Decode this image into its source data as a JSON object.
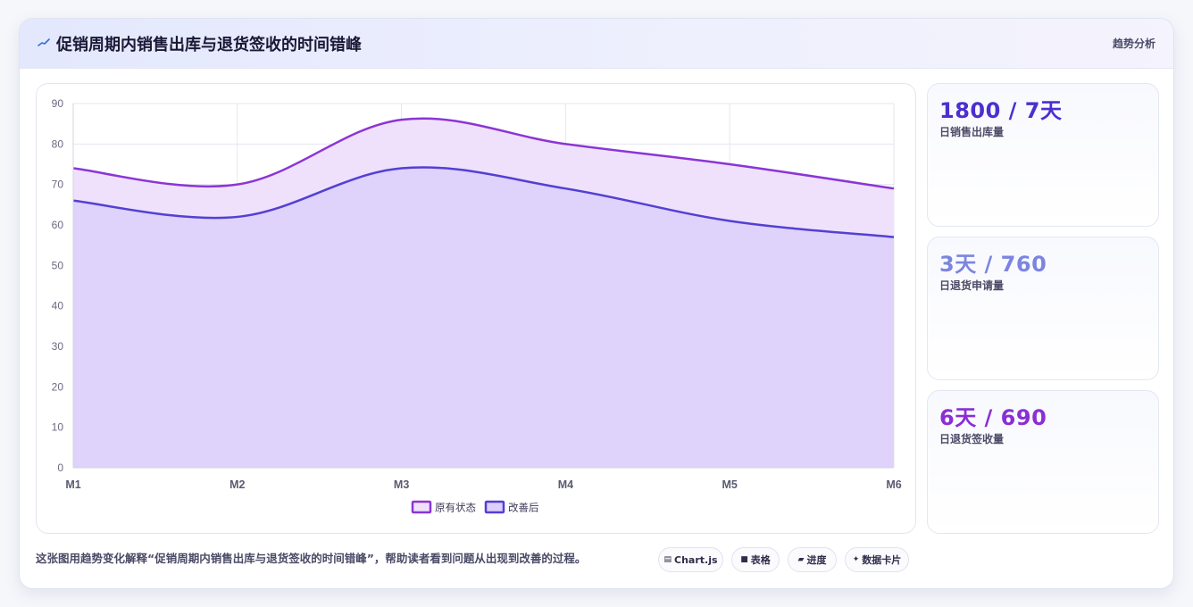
{
  "header": {
    "title": "促销周期内销售出库与退货签收的时间错峰",
    "tag": "趋势分析"
  },
  "chart_data": {
    "type": "area",
    "categories": [
      "M1",
      "M2",
      "M3",
      "M4",
      "M5",
      "M6"
    ],
    "ylim": [
      0,
      90
    ],
    "yticks": [
      0,
      10,
      20,
      30,
      40,
      50,
      60,
      70,
      80,
      90
    ],
    "grid": true,
    "legend_position": "bottom",
    "series": [
      {
        "name": "原有状态",
        "values": [
          74,
          70,
          86,
          80,
          75,
          69
        ],
        "color": "#8b35d6",
        "fill": "#efe1fb"
      },
      {
        "name": "改善后",
        "values": [
          66,
          62,
          74,
          69,
          61,
          57
        ],
        "color": "#5340d3",
        "fill": "#dccffa"
      }
    ]
  },
  "stats": [
    {
      "value": "1800 / 7天",
      "label": "日销售出库量",
      "color": "#4b2fd0"
    },
    {
      "value": "3天 / 760",
      "label": "日退货申请量",
      "color": "#7b85e0"
    },
    {
      "value": "6天 / 690",
      "label": "日退货签收量",
      "color": "#8a2fd4"
    }
  ],
  "footnote": "这张图用趋势变化解释“促销周期内销售出库与退货签收的时间错峰”，帮助读者看到问题从出现到改善的过程。",
  "chips": [
    {
      "icon": "chart-icon",
      "glyph": "▤",
      "label": "Chart.js"
    },
    {
      "icon": "table-icon",
      "glyph": "■",
      "label": "表格"
    },
    {
      "icon": "progress-icon",
      "glyph": "▰",
      "label": "进度"
    },
    {
      "icon": "sparkle-icon",
      "glyph": "✦",
      "label": "数据卡片"
    }
  ]
}
